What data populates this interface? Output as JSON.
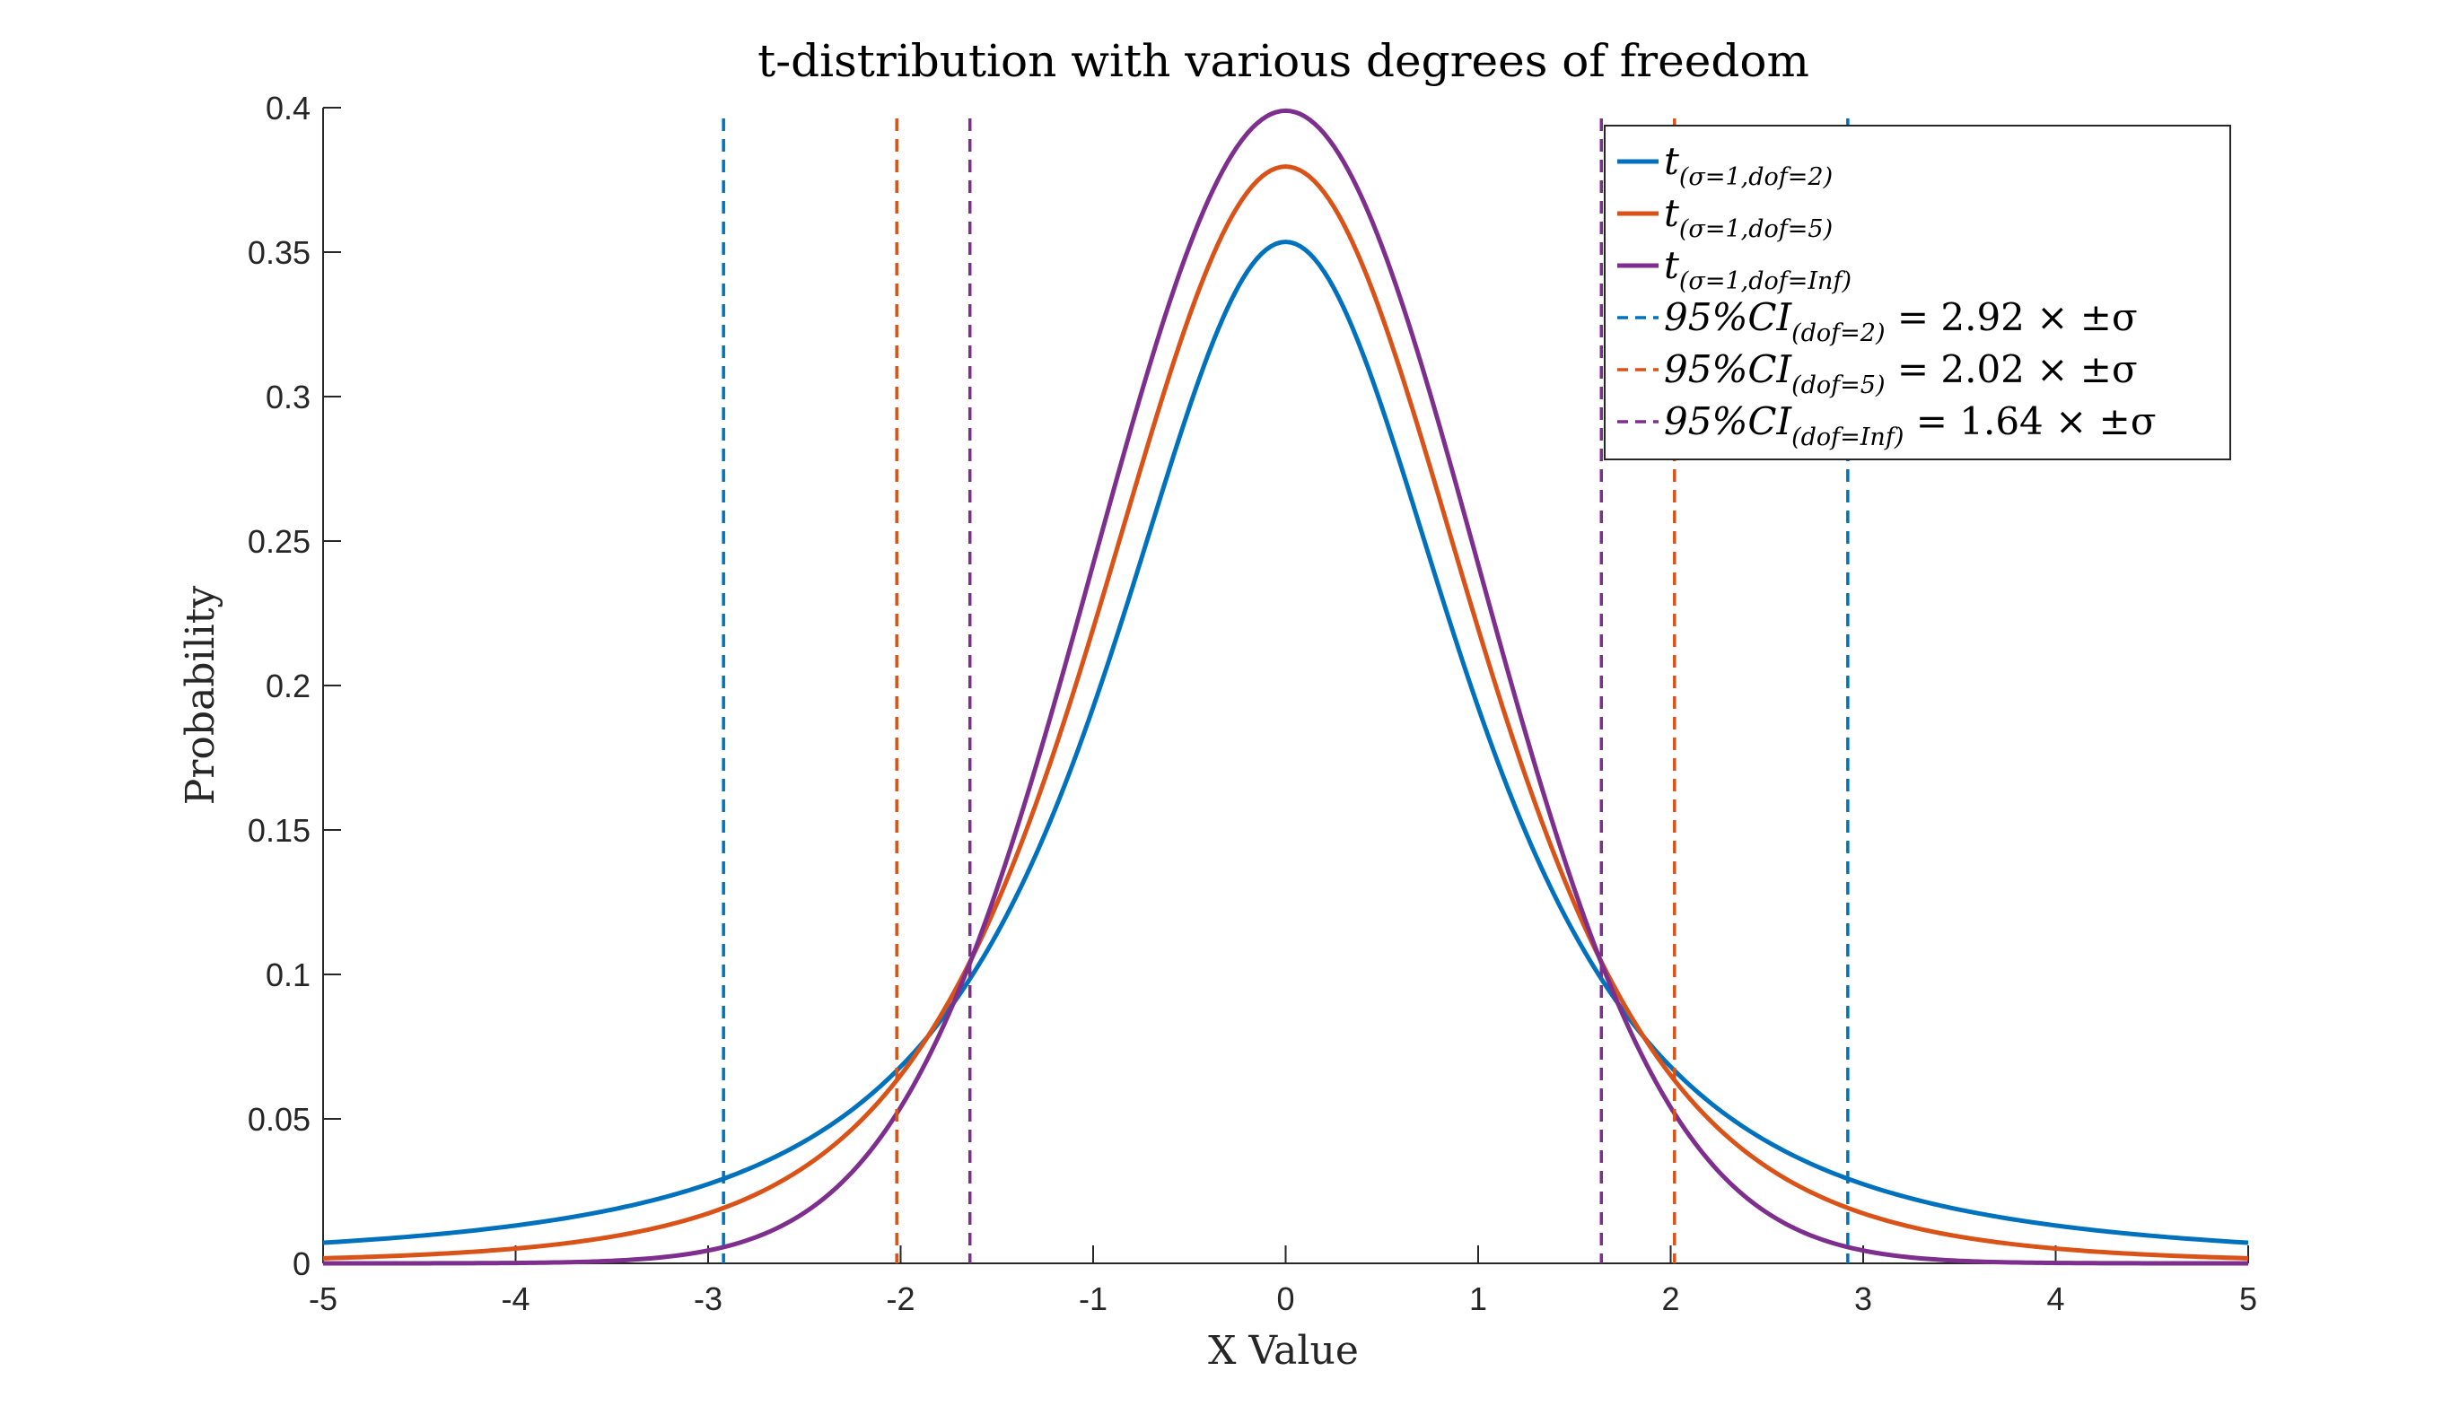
{
  "chart_data": {
    "type": "line",
    "title": "t-distribution with various degrees of freedom",
    "xlabel": "X Value",
    "ylabel": "Probability",
    "xlim": [
      -5,
      5
    ],
    "ylim": [
      0,
      0.4
    ],
    "xticks": [
      -5,
      -4,
      -3,
      -2,
      -1,
      0,
      1,
      2,
      3,
      4,
      5
    ],
    "yticks": [
      0,
      0.05,
      0.1,
      0.15,
      0.2,
      0.25,
      0.3,
      0.35,
      0.4
    ],
    "xtick_labels": [
      "-5",
      "-4",
      "-3",
      "-2",
      "-1",
      "0",
      "1",
      "2",
      "3",
      "4",
      "5"
    ],
    "ytick_labels": [
      "0",
      "0.05",
      "0.1",
      "0.15",
      "0.2",
      "0.25",
      "0.3",
      "0.35",
      "0.4"
    ],
    "grid": false,
    "legend_position": "top-right",
    "series": [
      {
        "name": "t(σ=1,dof=2)",
        "color": "#0072BD",
        "style": "solid",
        "x": [
          -5,
          -4.5,
          -4,
          -3.5,
          -3,
          -2.5,
          -2,
          -1.75,
          -1.5,
          -1.25,
          -1,
          -0.75,
          -0.5,
          -0.25,
          0,
          0.25,
          0.5,
          0.75,
          1,
          1.25,
          1.5,
          1.75,
          2,
          2.5,
          3,
          3.5,
          4,
          4.5,
          5
        ],
        "y": [
          0.0071,
          0.0096,
          0.0131,
          0.0185,
          0.0274,
          0.0422,
          0.068,
          0.0878,
          0.1143,
          0.1498,
          0.1925,
          0.2419,
          0.2962,
          0.3385,
          0.3536,
          0.3385,
          0.2962,
          0.2419,
          0.1925,
          0.1498,
          0.1143,
          0.0878,
          0.068,
          0.0422,
          0.0274,
          0.0185,
          0.0131,
          0.0096,
          0.0071
        ]
      },
      {
        "name": "t(σ=1,dof=5)",
        "color": "#D95319",
        "style": "solid",
        "x": [
          -5,
          -4.5,
          -4,
          -3.5,
          -3,
          -2.5,
          -2,
          -1.75,
          -1.5,
          -1.25,
          -1,
          -0.75,
          -0.5,
          -0.25,
          0,
          0.25,
          0.5,
          0.75,
          1,
          1.25,
          1.5,
          1.75,
          2,
          2.5,
          3,
          3.5,
          4,
          4.5,
          5
        ],
        "y": [
          0.0018,
          0.0029,
          0.0051,
          0.0092,
          0.0173,
          0.0335,
          0.0651,
          0.0882,
          0.1168,
          0.1507,
          0.2197,
          0.2777,
          0.3279,
          0.3652,
          0.3796,
          0.3652,
          0.3279,
          0.2777,
          0.2197,
          0.1507,
          0.1168,
          0.0882,
          0.0651,
          0.0335,
          0.0173,
          0.0092,
          0.0051,
          0.0029,
          0.0018
        ]
      },
      {
        "name": "t(σ=1,dof=Inf)",
        "color": "#7E2F8E",
        "style": "solid",
        "x": [
          -5,
          -4.5,
          -4,
          -3.5,
          -3,
          -2.5,
          -2,
          -1.75,
          -1.5,
          -1.25,
          -1,
          -0.75,
          -0.5,
          -0.25,
          0,
          0.25,
          0.5,
          0.75,
          1,
          1.25,
          1.5,
          1.75,
          2,
          2.5,
          3,
          3.5,
          4,
          4.5,
          5
        ],
        "y": [
          0.0,
          0.0,
          0.0001,
          0.0009,
          0.0044,
          0.0175,
          0.054,
          0.0863,
          0.1295,
          0.1826,
          0.242,
          0.3011,
          0.3521,
          0.3867,
          0.3989,
          0.3867,
          0.3521,
          0.3011,
          0.242,
          0.1826,
          0.1295,
          0.0863,
          0.054,
          0.0175,
          0.0044,
          0.0009,
          0.0001,
          0.0,
          0.0
        ]
      }
    ],
    "vlines": [
      {
        "name": "95%CI(dof=2) = 2.92 × ±σ",
        "color": "#0072BD",
        "style": "dashed",
        "x": [
          -2.92,
          2.92
        ]
      },
      {
        "name": "95%CI(dof=5) = 2.02 × ±σ",
        "color": "#D95319",
        "style": "dashed",
        "x": [
          -2.02,
          2.02
        ]
      },
      {
        "name": "95%CI(dof=Inf) = 1.64 × ±σ",
        "color": "#7E2F8E",
        "style": "dashed",
        "x": [
          -1.64,
          1.64
        ]
      }
    ],
    "legend": {
      "entries": [
        {
          "main": "t",
          "sub": "(σ=1,dof=2)",
          "rest": "",
          "color": "#0072BD",
          "style": "solid"
        },
        {
          "main": "t",
          "sub": "(σ=1,dof=5)",
          "rest": "",
          "color": "#D95319",
          "style": "solid"
        },
        {
          "main": "t",
          "sub": "(σ=1,dof=Inf)",
          "rest": "",
          "color": "#7E2F8E",
          "style": "solid"
        },
        {
          "main": "95%CI",
          "sub": "(dof=2)",
          "rest": " = 2.92 × ±σ",
          "color": "#0072BD",
          "style": "dashed"
        },
        {
          "main": "95%CI",
          "sub": "(dof=5)",
          "rest": " = 2.02 × ±σ",
          "color": "#D95319",
          "style": "dashed"
        },
        {
          "main": "95%CI",
          "sub": "(dof=Inf)",
          "rest": " = 1.64 × ±σ",
          "color": "#7E2F8E",
          "style": "dashed"
        }
      ]
    }
  }
}
